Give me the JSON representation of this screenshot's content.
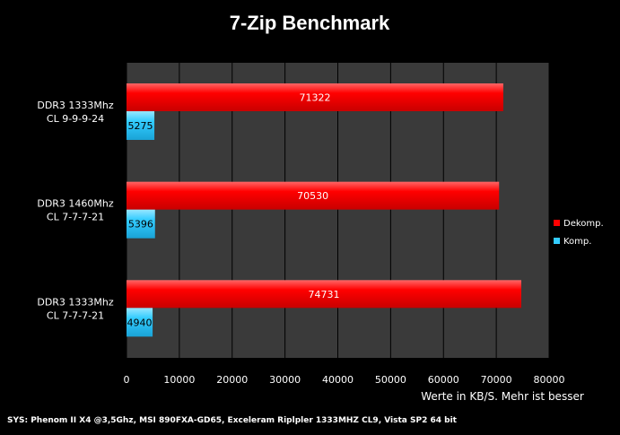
{
  "chart_data": {
    "type": "bar",
    "orientation": "horizontal",
    "title": "7-Zip Benchmark",
    "categories": [
      [
        "DDR3 1333Mhz",
        "CL 9-9-9-24"
      ],
      [
        "DDR3 1460Mhz",
        "CL 7-7-7-21"
      ],
      [
        "DDR3 1333Mhz",
        "CL 7-7-7-21"
      ]
    ],
    "series": [
      {
        "name": "Dekomp.",
        "color": "#ff0000",
        "values": [
          71322,
          70530,
          74731
        ]
      },
      {
        "name": "Komp.",
        "color": "#33ccff",
        "values": [
          5275,
          5396,
          4940
        ]
      }
    ],
    "xlim": [
      0,
      80000
    ],
    "xticks": [
      "0",
      "10000",
      "20000",
      "30000",
      "40000",
      "50000",
      "60000",
      "70000",
      "80000"
    ],
    "xlabel": "Werte in KB/S. Mehr ist besser",
    "ylabel": "",
    "grid": true,
    "legend_position": "right",
    "plot_background": "#3a3a3a",
    "page_background": "#000000",
    "footer": "SYS: Phenom II X4 @3,5Ghz, MSI 890FXA-GD65, Exceleram Riplpler 1333MHZ CL9, Vista SP2 64 bit"
  }
}
